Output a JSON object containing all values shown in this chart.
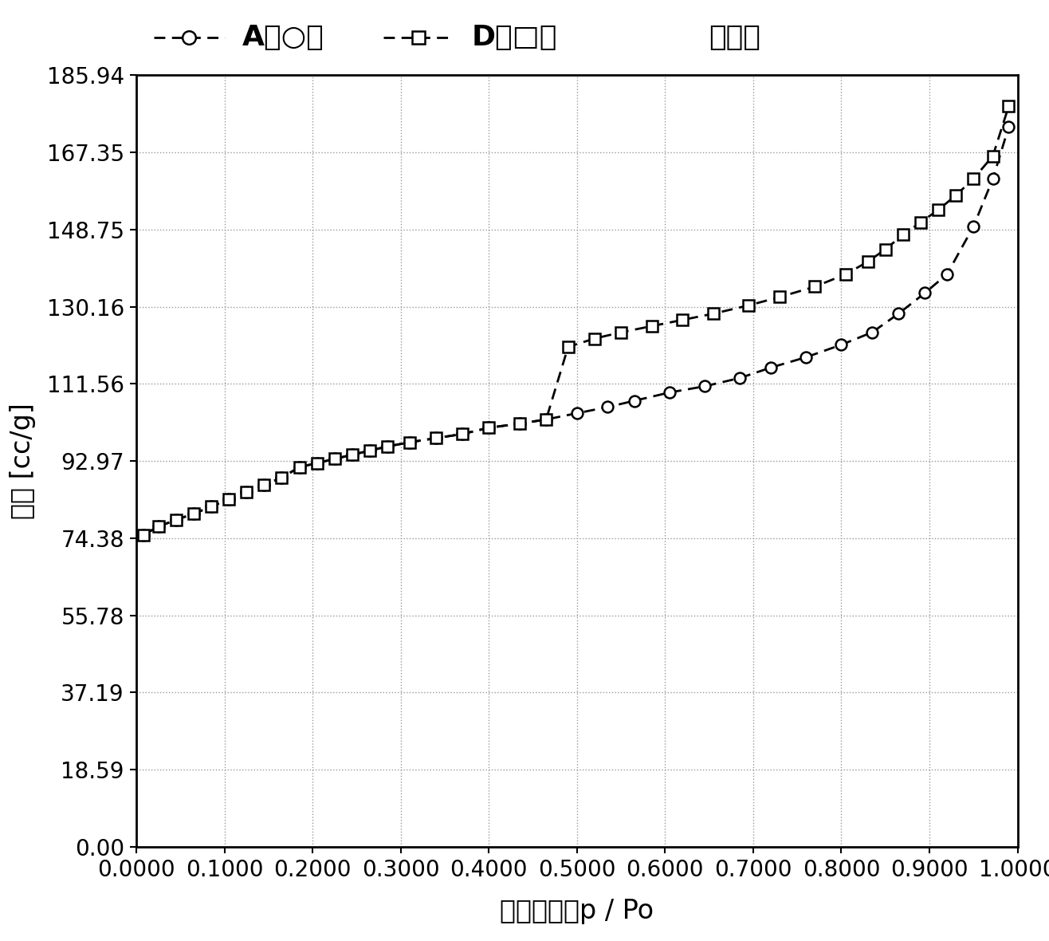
{
  "series_A_x": [
    0.008,
    0.025,
    0.045,
    0.065,
    0.085,
    0.105,
    0.125,
    0.145,
    0.165,
    0.185,
    0.205,
    0.225,
    0.245,
    0.265,
    0.285,
    0.31,
    0.34,
    0.37,
    0.4,
    0.435,
    0.465,
    0.5,
    0.535,
    0.565,
    0.605,
    0.645,
    0.685,
    0.72,
    0.76,
    0.8,
    0.835,
    0.865,
    0.895,
    0.92,
    0.95,
    0.972,
    0.99
  ],
  "series_A_y": [
    75.2,
    77.2,
    78.8,
    80.3,
    82.0,
    83.8,
    85.5,
    87.2,
    89.0,
    91.5,
    92.5,
    93.5,
    94.5,
    95.5,
    96.5,
    97.5,
    98.5,
    99.5,
    101.0,
    102.0,
    103.0,
    104.5,
    106.0,
    107.5,
    109.5,
    111.0,
    113.0,
    115.5,
    118.0,
    121.0,
    124.0,
    128.5,
    133.5,
    138.0,
    149.5,
    161.0,
    173.5
  ],
  "series_D_x": [
    0.008,
    0.025,
    0.045,
    0.065,
    0.085,
    0.105,
    0.125,
    0.145,
    0.165,
    0.185,
    0.205,
    0.225,
    0.245,
    0.265,
    0.285,
    0.31,
    0.34,
    0.37,
    0.4,
    0.435,
    0.465,
    0.49,
    0.52,
    0.55,
    0.585,
    0.62,
    0.655,
    0.695,
    0.73,
    0.77,
    0.805,
    0.83,
    0.85,
    0.87,
    0.89,
    0.91,
    0.93,
    0.95,
    0.972,
    0.99
  ],
  "series_D_y": [
    75.2,
    77.2,
    78.8,
    80.3,
    82.0,
    83.8,
    85.5,
    87.2,
    89.0,
    91.5,
    92.5,
    93.5,
    94.5,
    95.5,
    96.5,
    97.5,
    98.5,
    99.5,
    101.0,
    102.0,
    103.0,
    120.5,
    122.5,
    124.0,
    125.5,
    127.0,
    128.5,
    130.5,
    132.5,
    135.0,
    138.0,
    141.0,
    144.0,
    147.5,
    150.5,
    153.5,
    157.0,
    161.0,
    166.5,
    178.5
  ],
  "yticks": [
    0.0,
    18.59,
    37.19,
    55.78,
    74.38,
    92.97,
    111.56,
    130.16,
    148.75,
    167.35,
    185.94
  ],
  "xticks": [
    0.0,
    0.1,
    0.2,
    0.3,
    0.4,
    0.5,
    0.6,
    0.7,
    0.8,
    0.9,
    1.0
  ],
  "xlabel_chinese": "相对压力，",
  "xlabel_latin": "p / Po",
  "ylabel": "体积 [cc/g]",
  "legend_title": "等温线",
  "line_color": "#000000",
  "bg_color": "#ffffff",
  "grid_color": "#999999",
  "title_fontsize": 24,
  "tick_fontsize": 20,
  "label_fontsize": 24
}
